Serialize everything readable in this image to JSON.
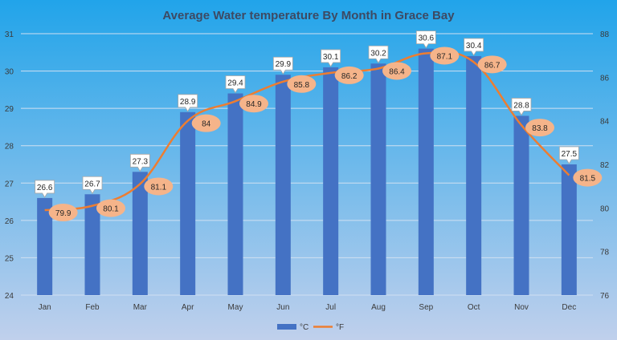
{
  "chart_data": {
    "type": "bar",
    "title": "Average Water temperature By Month in Grace Bay",
    "categories": [
      "Jan",
      "Feb",
      "Mar",
      "Apr",
      "May",
      "Jun",
      "Jul",
      "Aug",
      "Sep",
      "Oct",
      "Nov",
      "Dec"
    ],
    "series": [
      {
        "name": "°C",
        "kind": "bar",
        "axis": "left",
        "color": "#4472c4",
        "values": [
          26.6,
          26.7,
          27.3,
          28.9,
          29.4,
          29.9,
          30.1,
          30.2,
          30.6,
          30.4,
          28.8,
          27.5
        ]
      },
      {
        "name": "°F",
        "kind": "line",
        "axis": "right",
        "color": "#ed7d31",
        "values": [
          79.9,
          80.1,
          81.1,
          84,
          84.9,
          85.8,
          86.2,
          86.4,
          87.1,
          86.7,
          83.8,
          81.5
        ]
      }
    ],
    "y_left": {
      "min": 24,
      "max": 31,
      "ticks": [
        "24",
        "25",
        "26",
        "27",
        "28",
        "29",
        "30",
        "31"
      ]
    },
    "y_right": {
      "min": 76,
      "max": 88,
      "ticks": [
        "76",
        "78",
        "80",
        "82",
        "84",
        "86",
        "88"
      ]
    },
    "grid": true,
    "legend": "bottom",
    "colors": {
      "bg_top": "#21a4ea",
      "bg_bottom": "#c0d0ec",
      "label_bubble": "#f5b48a"
    }
  }
}
